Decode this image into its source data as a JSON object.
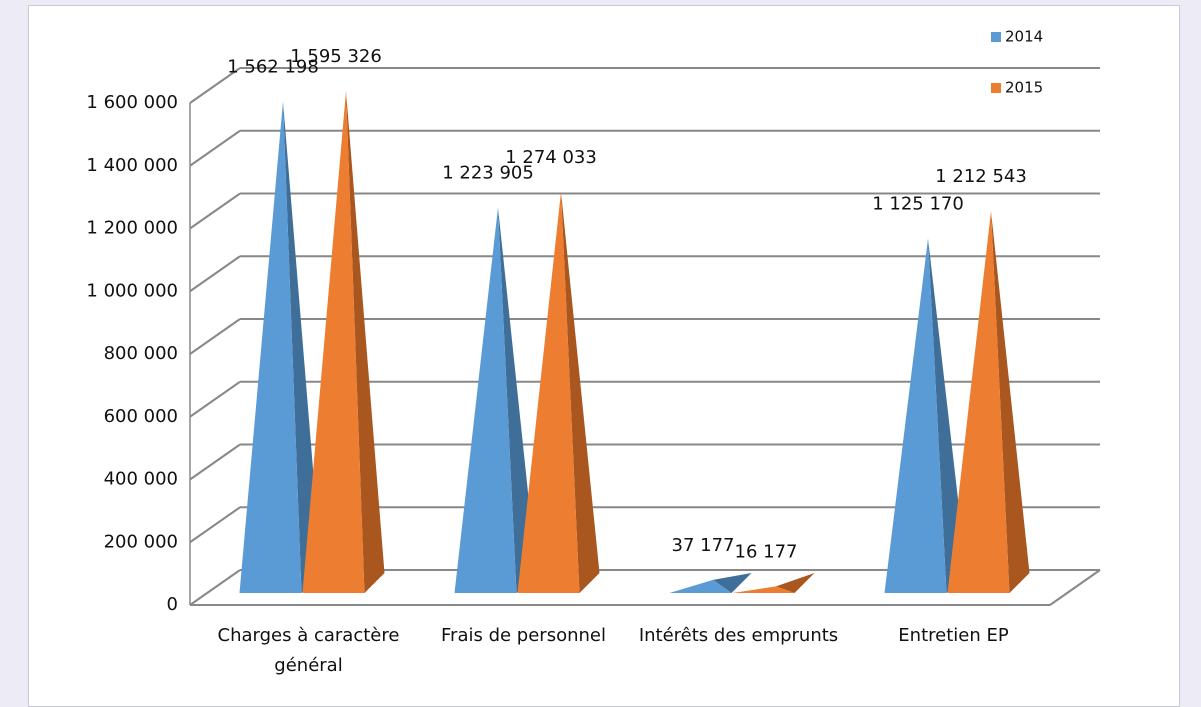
{
  "chart_data": {
    "type": "pyramid3d",
    "categories": [
      "Charges à caractère général",
      "Frais de personnel",
      "Intérêts des emprunts",
      "Entretien EP"
    ],
    "series": [
      {
        "name": "2014",
        "color": "#5b9bd5",
        "side_color": "#3f6f98",
        "values": [
          1562198,
          1223905,
          37177,
          1125170
        ],
        "value_labels": [
          "1 562 198",
          "1 223 905",
          "37 177",
          "1 125 170"
        ]
      },
      {
        "name": "2015",
        "color": "#ed7d31",
        "side_color": "#a9561f",
        "values": [
          1595326,
          1274033,
          16177,
          1212543
        ],
        "value_labels": [
          "1 595 326",
          "1 274 033",
          "16 177",
          "1 212 543"
        ]
      }
    ],
    "ylim": [
      0,
      1600000
    ],
    "yticks": [
      0,
      {
        "value": 200000,
        "label": "200 000"
      },
      {
        "value": 400000,
        "label": "400 000"
      },
      {
        "value": 600000,
        "label": "600 000"
      },
      {
        "value": 800000,
        "label": "800 000"
      },
      {
        "value": 1000000,
        "label": "1 000 000"
      },
      {
        "value": 1200000,
        "label": "1 200 000"
      },
      {
        "value": 1400000,
        "label": "1 400 000"
      },
      {
        "value": 1600000,
        "label": "1 600 000"
      }
    ],
    "grid": true,
    "legend": "top-right"
  }
}
